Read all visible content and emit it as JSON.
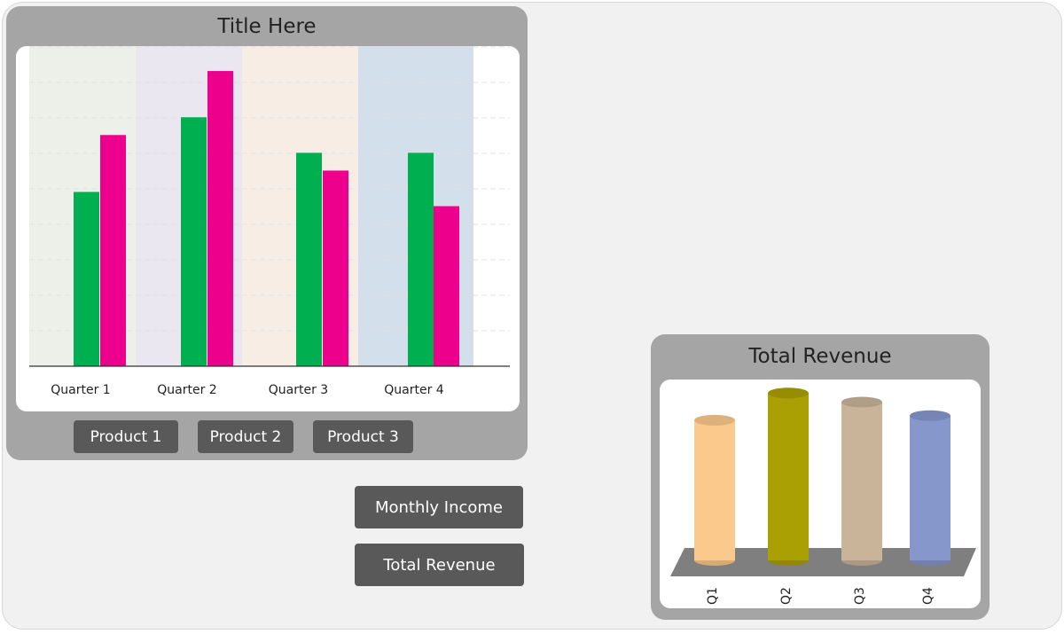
{
  "main_chart": {
    "title": "Title Here",
    "buttons": [
      "Product 1",
      "Product 2",
      "Product 3"
    ]
  },
  "side_buttons": {
    "monthly_income": "Monthly Income",
    "total_revenue": "Total Revenue"
  },
  "revenue_chart": {
    "title": "Total Revenue"
  },
  "chart_data": [
    {
      "type": "bar",
      "title": "Title Here",
      "categories": [
        "Quarter 1",
        "Quarter 2",
        "Quarter 3",
        "Quarter 4"
      ],
      "series": [
        {
          "color": "#00b050",
          "values": [
            4.9,
            7.0,
            6.0,
            6.0
          ]
        },
        {
          "color": "#ec008c",
          "values": [
            6.5,
            8.3,
            5.5,
            4.5
          ]
        }
      ],
      "ylim": [
        0,
        9
      ],
      "category_bands": [
        "#edf0e8",
        "#ebe7f0",
        "#f8ede5",
        "#d3dfea"
      ],
      "grid": true
    },
    {
      "type": "bar",
      "title": "Total Revenue",
      "style": "3d-cylinder",
      "categories": [
        "Q1",
        "Q2",
        "Q3",
        "Q4"
      ],
      "values": [
        155,
        185,
        175,
        160
      ],
      "colors": [
        "#fbc98b",
        "#aba003",
        "#c9b49a",
        "#8697cc"
      ],
      "ylim": [
        0,
        200
      ]
    }
  ]
}
